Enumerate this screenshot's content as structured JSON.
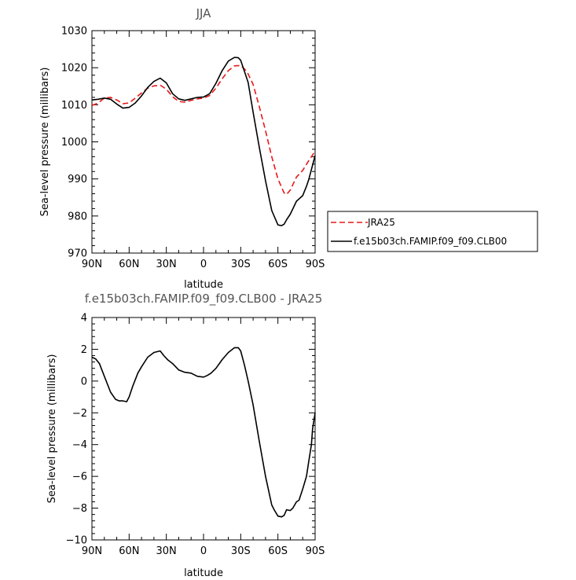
{
  "chart_data": [
    {
      "type": "line",
      "title": "JJA",
      "xlabel": "latitude",
      "ylabel": "Sea-level pressure (millibars)",
      "xlim": [
        -90,
        90
      ],
      "ylim": [
        970,
        1030
      ],
      "xticks": [
        -90,
        -60,
        -30,
        0,
        30,
        60,
        90
      ],
      "xtick_labels": [
        "90N",
        "60N",
        "30N",
        "0",
        "30S",
        "60S",
        "90S"
      ],
      "yticks": [
        970,
        980,
        990,
        1000,
        1010,
        1020,
        1030
      ],
      "ytick_labels": [
        "970",
        "980",
        "990",
        "1000",
        "1010",
        "1020",
        "1030"
      ],
      "legend_position": "right",
      "series": [
        {
          "name": "JRA25",
          "color": "#e8191b",
          "dash": "dashed",
          "x": [
            -90,
            -85,
            -80,
            -75,
            -70,
            -65,
            -60,
            -55,
            -50,
            -45,
            -40,
            -35,
            -30,
            -25,
            -20,
            -15,
            -10,
            -5,
            0,
            5,
            10,
            15,
            20,
            25,
            30,
            35,
            40,
            45,
            50,
            55,
            60,
            65,
            67,
            70,
            75,
            80,
            85,
            90
          ],
          "y": [
            1009.8,
            1010.5,
            1011.8,
            1012.0,
            1011.3,
            1010.3,
            1010.5,
            1011.8,
            1013.2,
            1014.5,
            1015.1,
            1015.3,
            1014.2,
            1012.2,
            1010.9,
            1010.7,
            1011.2,
            1011.6,
            1011.8,
            1012.5,
            1014.5,
            1017.0,
            1019.2,
            1020.5,
            1020.6,
            1019.0,
            1015.5,
            1009.5,
            1003.0,
            996.0,
            990.0,
            986.2,
            985.8,
            987.0,
            990.5,
            992.3,
            995.0,
            997.5
          ]
        },
        {
          "name": "f.e15b03ch.FAMIP.f09_f09.CLB00",
          "color": "#000000",
          "dash": "solid",
          "x": [
            -90,
            -85,
            -80,
            -75,
            -70,
            -65,
            -60,
            -55,
            -50,
            -45,
            -40,
            -35,
            -30,
            -25,
            -20,
            -15,
            -10,
            -5,
            0,
            5,
            10,
            15,
            20,
            25,
            28,
            30,
            33,
            36,
            40,
            45,
            50,
            55,
            60,
            63,
            65,
            67,
            70,
            75,
            80,
            83,
            85,
            90
          ],
          "y": [
            1011.3,
            1011.5,
            1011.8,
            1011.5,
            1010.2,
            1009.1,
            1009.3,
            1010.5,
            1012.4,
            1014.7,
            1016.3,
            1017.2,
            1015.9,
            1013.0,
            1011.6,
            1011.2,
            1011.6,
            1012.0,
            1012.1,
            1013.0,
            1015.8,
            1019.2,
            1021.8,
            1022.8,
            1022.7,
            1022.0,
            1019.0,
            1016.0,
            1008.0,
            998.5,
            989.5,
            981.5,
            977.6,
            977.4,
            977.8,
            979.0,
            980.5,
            984.0,
            985.5,
            988.0,
            990.0,
            996.3
          ]
        }
      ]
    },
    {
      "type": "line",
      "title": "f.e15b03ch.FAMIP.f09_f09.CLB00 - JRA25",
      "xlabel": "latitude",
      "ylabel": "Sea-level pressure (millibars)",
      "xlim": [
        -90,
        90
      ],
      "ylim": [
        -10,
        4
      ],
      "xticks": [
        -90,
        -60,
        -30,
        0,
        30,
        60,
        90
      ],
      "xtick_labels": [
        "90N",
        "60N",
        "30N",
        "0",
        "30S",
        "60S",
        "90S"
      ],
      "yticks": [
        -10,
        -8,
        -6,
        -4,
        -2,
        0,
        2,
        4
      ],
      "ytick_labels": [
        "−10",
        "−8",
        "−6",
        "−4",
        "−2",
        "0",
        "2",
        "4"
      ],
      "series": [
        {
          "color": "#000000",
          "dash": "solid",
          "x": [
            -90,
            -87,
            -84,
            -80,
            -75,
            -71,
            -68,
            -65,
            -62,
            -60,
            -57,
            -53,
            -50,
            -45,
            -40,
            -35,
            -32,
            -29,
            -25,
            -20,
            -15,
            -10,
            -5,
            0,
            3,
            6,
            10,
            15,
            20,
            25,
            28,
            30,
            33,
            36,
            40,
            45,
            50,
            55,
            57,
            60,
            63,
            65,
            67,
            70,
            72,
            75,
            77,
            80,
            83,
            85,
            87,
            88,
            89,
            90
          ],
          "y": [
            1.5,
            1.4,
            1.1,
            0.3,
            -0.7,
            -1.15,
            -1.25,
            -1.25,
            -1.3,
            -1.0,
            -0.3,
            0.5,
            0.9,
            1.5,
            1.8,
            1.9,
            1.6,
            1.35,
            1.1,
            0.7,
            0.55,
            0.5,
            0.3,
            0.25,
            0.35,
            0.5,
            0.8,
            1.35,
            1.8,
            2.1,
            2.1,
            1.9,
            1.0,
            0.0,
            -1.5,
            -3.8,
            -6.0,
            -7.8,
            -8.1,
            -8.5,
            -8.55,
            -8.45,
            -8.1,
            -8.15,
            -8.0,
            -7.6,
            -7.5,
            -6.8,
            -6.0,
            -5.0,
            -4.0,
            -3.0,
            -2.5,
            -2.0
          ]
        }
      ]
    }
  ]
}
